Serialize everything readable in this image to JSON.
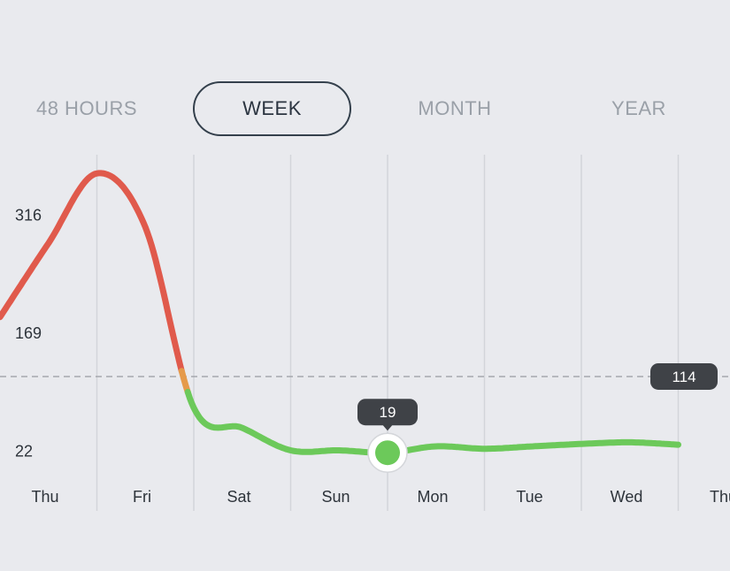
{
  "tabs": [
    {
      "label": "48 HOURS",
      "active": false
    },
    {
      "label": "WEEK",
      "active": true
    },
    {
      "label": "MONTH",
      "active": false
    },
    {
      "label": "YEAR",
      "active": false
    }
  ],
  "colors": {
    "background": "#e9eaee",
    "high": "#e05a4c",
    "medium": "#e59a4a",
    "low": "#6cc95a",
    "gridline": "#d3d5da",
    "reference": "#a6a8ad",
    "badge": "#3f4247"
  },
  "chart_data": {
    "type": "line",
    "x_categories": [
      "Thu",
      "Fri",
      "Sat",
      "Sun",
      "Mon",
      "Tue",
      "Wed",
      "Thu"
    ],
    "y_ticks": [
      22,
      169,
      316
    ],
    "reference_line": {
      "value": 114,
      "label": "114"
    },
    "selected_point": {
      "x": "Mon",
      "value": 19,
      "label": "19"
    },
    "series": [
      {
        "points": [
          {
            "x": "Thu",
            "y": 188
          },
          {
            "x": "Thu 12h",
            "y": 280
          },
          {
            "x": "Fri",
            "y": 367
          },
          {
            "x": "Fri 12h",
            "y": 300
          },
          {
            "x": "Sat",
            "y": 75
          },
          {
            "x": "Sat 12h",
            "y": 50
          },
          {
            "x": "Sun",
            "y": 22
          },
          {
            "x": "Sun 12h",
            "y": 22
          },
          {
            "x": "Mon",
            "y": 19
          },
          {
            "x": "Mon 12h",
            "y": 27
          },
          {
            "x": "Tue",
            "y": 24
          },
          {
            "x": "Tue 12h",
            "y": 27
          },
          {
            "x": "Wed",
            "y": 30
          },
          {
            "x": "Wed 12h",
            "y": 32
          },
          {
            "x": "Thu",
            "y": 29
          }
        ]
      }
    ],
    "color_thresholds": {
      "high_above": 125,
      "medium_above": 100
    }
  }
}
